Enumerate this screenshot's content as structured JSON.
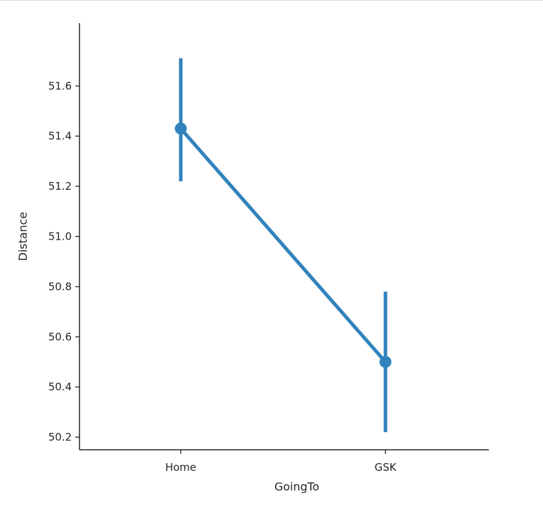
{
  "chart_data": {
    "type": "line",
    "xlabel": "GoingTo",
    "ylabel": "Distance",
    "categories": [
      "Home",
      "GSK"
    ],
    "series": [
      {
        "values": [
          51.43,
          50.5
        ],
        "ci_low": [
          51.22,
          50.22
        ],
        "ci_high": [
          51.71,
          50.78
        ]
      }
    ],
    "ylim": [
      50.15,
      51.85
    ],
    "yticks": [
      50.2,
      50.4,
      50.6,
      50.8,
      51.0,
      51.2,
      51.4,
      51.6
    ],
    "ytick_labels": [
      "50.2",
      "50.4",
      "50.6",
      "50.8",
      "51.0",
      "51.2",
      "51.4",
      "51.6"
    ],
    "grid": false,
    "color": "#3182bd"
  }
}
